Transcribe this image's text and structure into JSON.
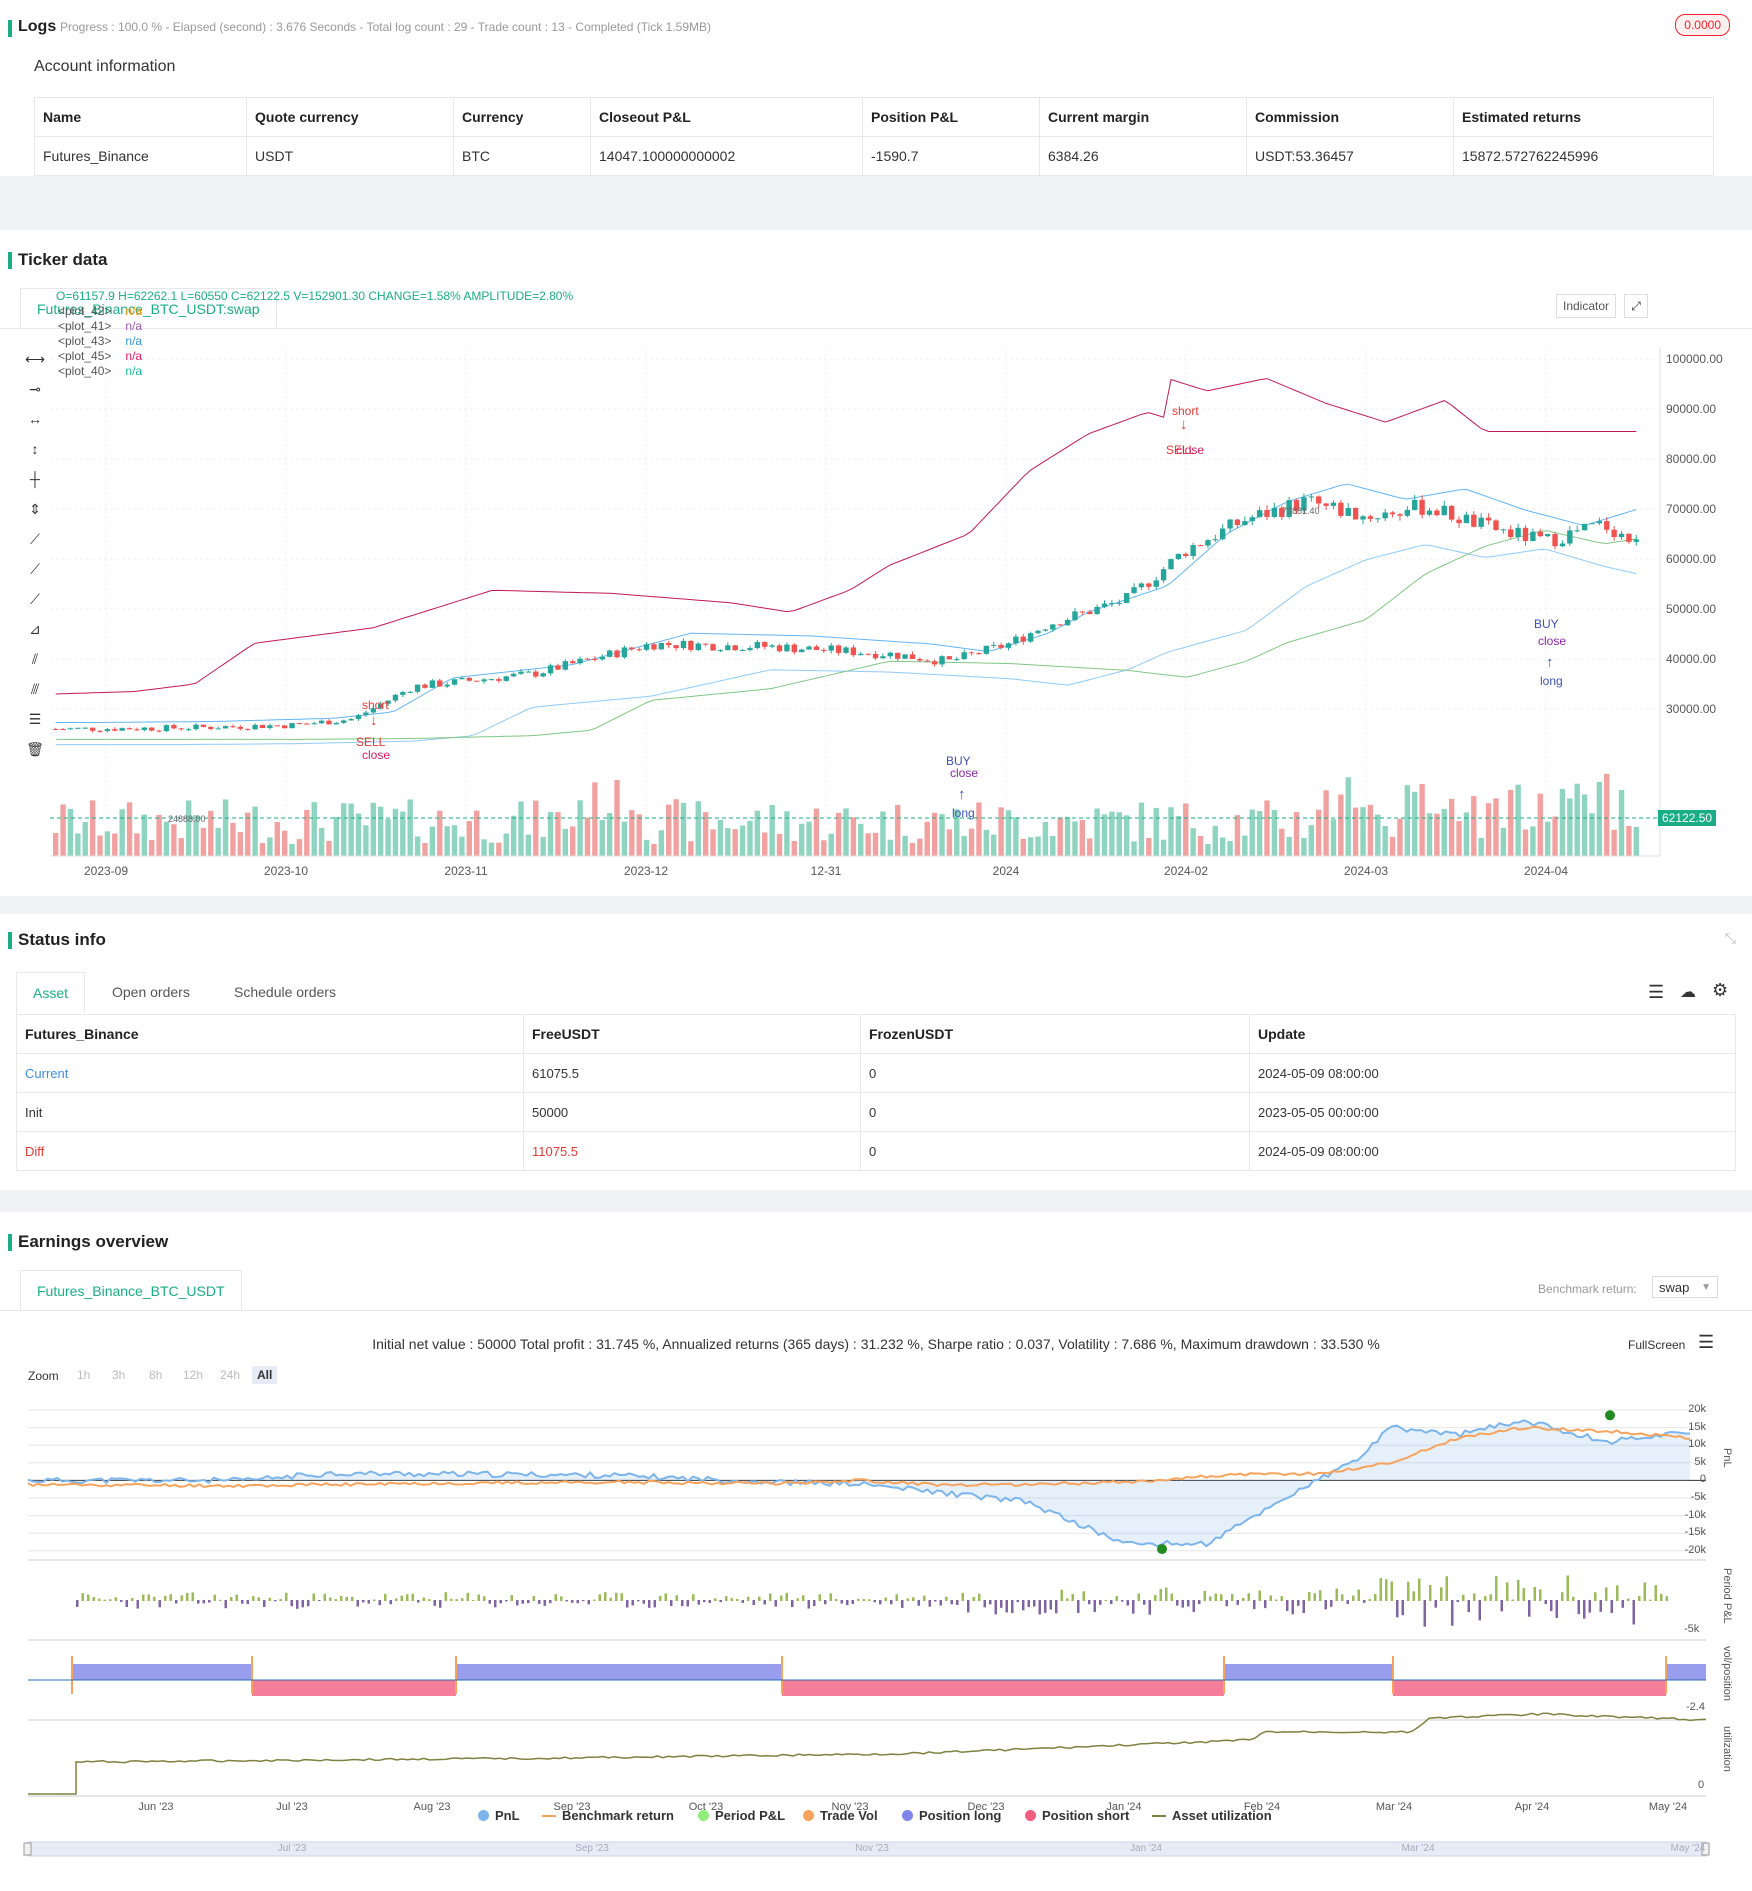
{
  "logs": {
    "title": "Logs",
    "status": "Progress : 100.0 % - Elapsed (second) : 3.676  Seconds - Total log count : 29 - Trade count : 13 - Completed (Tick 1.59MB)",
    "badge": "0.0000"
  },
  "account": {
    "title": "Account information",
    "headers": [
      "Name",
      "Quote currency",
      "Currency",
      "Closeout P&L",
      "Position P&L",
      "Current margin",
      "Commission",
      "Estimated returns"
    ],
    "row": [
      "Futures_Binance",
      "USDT",
      "BTC",
      "14047.100000000002",
      "-1590.7",
      "6384.26",
      "USDT:53.36457",
      "15872.572762245996"
    ]
  },
  "ticker": {
    "title": "Ticker data",
    "tab": "Futures_Binance_BTC_USDT:swap",
    "ohlc": "O=61157.9 H=62262.1 L=60550 C=62122.5 V=152901.30 CHANGE=1.58% AMPLITUDE=2.80%",
    "plots": [
      {
        "name": "<plot_42>",
        "value": "n/a",
        "color": "#f39c12"
      },
      {
        "name": "<plot_41>",
        "value": "n/a",
        "color": "#9b59b6"
      },
      {
        "name": "<plot_43>",
        "value": "n/a",
        "color": "#3498db"
      },
      {
        "name": "<plot_45>",
        "value": "n/a",
        "color": "#e91e63"
      },
      {
        "name": "<plot_40>",
        "value": "n/a",
        "color": "#1abc9c"
      }
    ],
    "indicator_btn": "Indicator",
    "y_ticks": [
      "100000.00",
      "90000.00",
      "80000.00",
      "70000.00",
      "60000.00",
      "50000.00",
      "40000.00",
      "30000.00"
    ],
    "x_ticks": [
      "2023-09",
      "2023-10",
      "2023-11",
      "2023-12",
      "12-31",
      "2024",
      "2024-02",
      "2024-03",
      "2024-04"
    ],
    "price_label": "62122.50",
    "high_mark": "73881.40",
    "low_mark": "24888.00",
    "signals": {
      "short1": "short",
      "sell1": "SELL",
      "close1": "close",
      "buy1": "BUY",
      "close2": "close",
      "long1": "long",
      "short2": "short",
      "sell2": "SELL",
      "close3": "close",
      "buy2": "BUY",
      "close4": "close",
      "long2": "long"
    }
  },
  "status": {
    "title": "Status info",
    "tabs": [
      "Asset",
      "Open orders",
      "Schedule orders"
    ],
    "headers": [
      "Futures_Binance",
      "FreeUSDT",
      "FrozenUSDT",
      "Update"
    ],
    "rows": [
      [
        "Current",
        "61075.5",
        "0",
        "2024-05-09 08:00:00"
      ],
      [
        "Init",
        "50000",
        "0",
        "2023-05-05 00:00:00"
      ],
      [
        "Diff",
        "11075.5",
        "0",
        "2024-05-09 08:00:00"
      ]
    ]
  },
  "earnings": {
    "title": "Earnings overview",
    "tab": "Futures_Binance_BTC_USDT",
    "benchmark_label": "Benchmark return:",
    "benchmark_value": "swap",
    "summary": "Initial net value : 50000 Total profit : 31.745 %, Annualized returns (365 days) : 31.232 %, Sharpe ratio : 0.037, Volatility : 7.686 %, Maximum drawdown : 33.530 %",
    "fullscreen": "FullScreen",
    "zoom_label": "Zoom",
    "zoom_opts": [
      "1h",
      "3h",
      "8h",
      "12h",
      "24h",
      "All"
    ],
    "pnl_ticks": [
      "20k",
      "15k",
      "10k",
      "5k",
      "0",
      "-5k",
      "-10k",
      "-15k",
      "-20k"
    ],
    "axis_titles": [
      "PnL",
      "Period P&L",
      "vol/position",
      "utilization"
    ],
    "period_tick": "-5k",
    "pos_tick": "-2.4",
    "util_tick": "0",
    "x_ticks": [
      "Jun '23",
      "Jul '23",
      "Aug '23",
      "Sep '23",
      "Oct '23",
      "Nov '23",
      "Dec '23",
      "Jan '24",
      "Feb '24",
      "Mar '24",
      "Apr '24",
      "May '24"
    ],
    "nav_ticks": [
      "Jul '23",
      "Sep '23",
      "Nov '23",
      "Jan '24",
      "Mar '24",
      "May '24"
    ],
    "legend": [
      {
        "name": "PnL",
        "color": "#7cb5ec"
      },
      {
        "name": "Benchmark return",
        "color": "#f7a35c"
      },
      {
        "name": "Period P&L",
        "color": "#90ed7d"
      },
      {
        "name": "Trade Vol",
        "color": "#f7a35c"
      },
      {
        "name": "Position long",
        "color": "#8085e9"
      },
      {
        "name": "Position short",
        "color": "#f15c80"
      },
      {
        "name": "Asset utilization",
        "color": "#808040"
      }
    ]
  }
}
